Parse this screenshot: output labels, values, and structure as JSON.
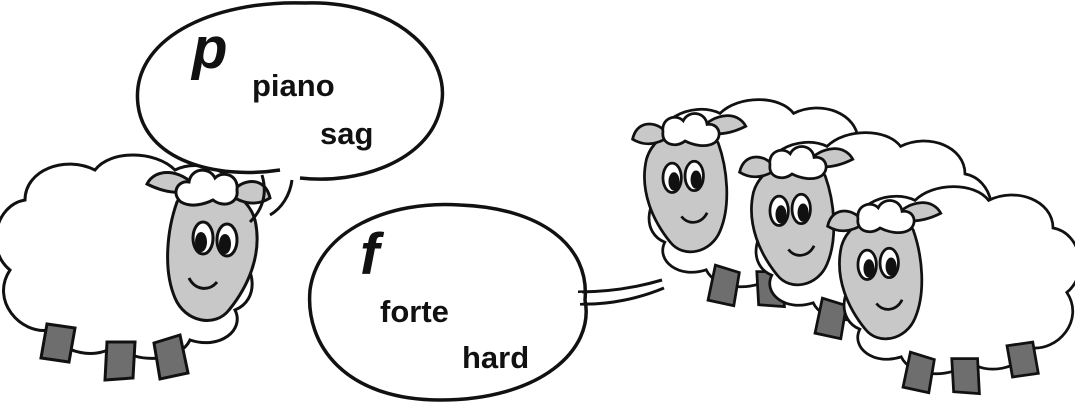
{
  "colors": {
    "outline": "#111111",
    "wool": "#ffffff",
    "face": "#c8c8c8",
    "hoof": "#6e6e6e",
    "eye": "#111111"
  },
  "left_bubble": {
    "symbol": "p",
    "term": "piano",
    "translation": "sag"
  },
  "right_bubble": {
    "symbol": "f",
    "term": "forte",
    "translation": "hard"
  }
}
